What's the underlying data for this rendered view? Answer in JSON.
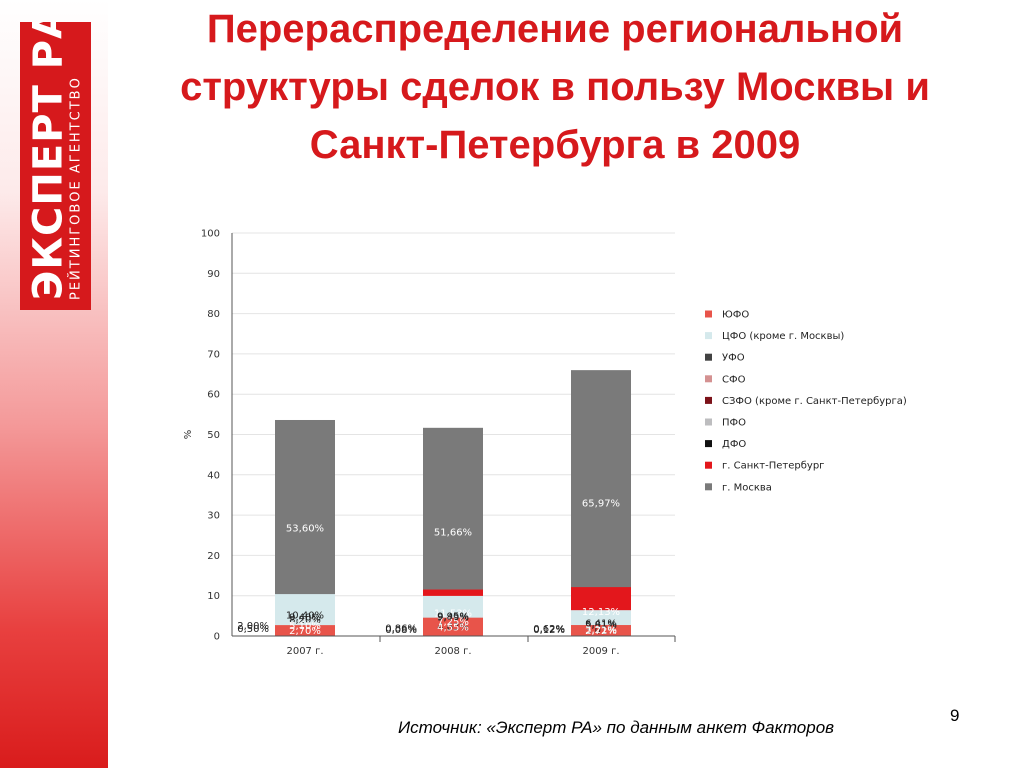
{
  "slide": {
    "title": "Перераспределение региональной структуры сделок в пользу Москвы и Санкт-Петербурга в 2009",
    "source": "Источник: «Эксперт РА» по данным анкет Факторов",
    "page_number": "9"
  },
  "logo": {
    "brand": "ЭКСПЕРТ РА",
    "subtitle": "РЕЙТИНГОВОЕ АГЕНТСТВО",
    "color": "#d6191c"
  },
  "chart_data": {
    "type": "bar",
    "stacked": true,
    "categories": [
      "2007 г.",
      "2008 г.",
      "2009 г."
    ],
    "ylabel": "%",
    "ylim": [
      0,
      100
    ],
    "yticks": [
      0,
      10,
      20,
      30,
      40,
      50,
      60,
      70,
      80,
      90,
      100
    ],
    "legend_position": "right",
    "series": [
      {
        "name": "г. Москва",
        "color": "#7a7a7a",
        "values": [
          53.6,
          51.66,
          65.97
        ],
        "labels": [
          "53,60%",
          "51,66%",
          "65,97%"
        ]
      },
      {
        "name": "г. Санкт-Петербург",
        "color": "#e3171c",
        "values": [
          8.0,
          11.53,
          12.13
        ],
        "labels": [
          "8,00%",
          "11,53%",
          "12,13%"
        ]
      },
      {
        "name": "ДФО",
        "color": "#111111",
        "values": [
          0.5,
          0.08,
          0.12
        ],
        "labels": [
          "0,50%",
          "0,08%",
          "0,12%"
        ]
      },
      {
        "name": "ПФО",
        "color": "#bdbdbf",
        "values": [
          9.4,
          9.49,
          5.81
        ],
        "labels": [
          "9,40%",
          "9,49%",
          "5,81%"
        ]
      },
      {
        "name": "СЗФО (кроме г. Санкт-Петербурга)",
        "color": "#7c1219",
        "values": [
          2.0,
          0.86,
          0.62
        ],
        "labels": [
          "2,00%",
          "0,86%",
          "0,62%"
        ]
      },
      {
        "name": "СФО",
        "color": "#d49191",
        "values": [
          8.2,
          4.63,
          3.01
        ],
        "labels": [
          "8,20%",
          "4,63%",
          "3,01%"
        ]
      },
      {
        "name": "УФО",
        "color": "#424242",
        "values": [
          5.1,
          7.25,
          3.21
        ],
        "labels": [
          "5,10%",
          "7,25%",
          "3,21%"
        ]
      },
      {
        "name": "ЦФО (кроме г. Москвы)",
        "color": "#d5e9ec",
        "values": [
          10.4,
          9.95,
          6.41
        ],
        "labels": [
          "10,40%",
          "9,95%",
          "6,41%"
        ]
      },
      {
        "name": "ЮФО",
        "color": "#e8544a",
        "values": [
          2.7,
          4.55,
          2.72
        ],
        "labels": [
          "2,70%",
          "4,55%",
          "2,72%"
        ]
      }
    ],
    "legend_order": [
      "ЮФО",
      "ЦФО (кроме г. Москвы)",
      "УФО",
      "СФО",
      "СЗФО (кроме г. Санкт-Петербурга)",
      "ПФО",
      "ДФО",
      "г. Санкт-Петербург",
      "г. Москва"
    ],
    "outside_labels": [
      "ДФО",
      "СЗФО (кроме г. Санкт-Петербурга)"
    ]
  }
}
